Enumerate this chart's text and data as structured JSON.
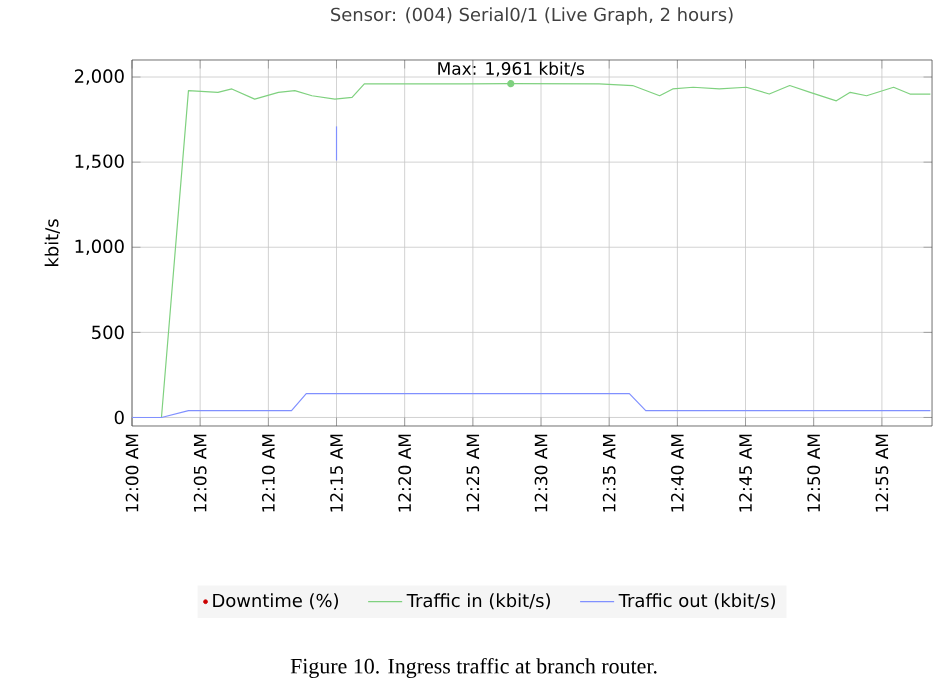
{
  "chart_data": {
    "type": "line",
    "title": "Sensor: (004) Serial0/1 (Live Graph, 2 hours)",
    "ylabel": "kbit/s",
    "xlim": [
      0,
      0.978
    ],
    "ylim": [
      -50,
      2100
    ],
    "xticks": [
      {
        "value": 0,
        "label": "12:00 AM"
      },
      {
        "value": 0.0833,
        "label": "12:05 AM"
      },
      {
        "value": 0.1667,
        "label": "12:10 AM"
      },
      {
        "value": 0.25,
        "label": "12:15 AM"
      },
      {
        "value": 0.3333,
        "label": "12:20 AM"
      },
      {
        "value": 0.4167,
        "label": "12:25 AM"
      },
      {
        "value": 0.5,
        "label": "12:30 AM"
      },
      {
        "value": 0.5833,
        "label": "12:35 AM"
      },
      {
        "value": 0.6667,
        "label": "12:40 AM"
      },
      {
        "value": 0.75,
        "label": "12:45 AM"
      },
      {
        "value": 0.8333,
        "label": "12:50 AM"
      },
      {
        "value": 0.9167,
        "label": "12:55 AM"
      }
    ],
    "yticks": [
      0,
      500,
      {
        "value": 1000,
        "label": "1,000"
      },
      {
        "value": 1500,
        "label": "1,500"
      },
      {
        "value": 2000,
        "label": "2,000"
      }
    ],
    "grid": true,
    "legend": "bottom",
    "marker": "none",
    "series": [
      {
        "name": "Downtime (%)",
        "type": "scatter",
        "color": "#cc0000"
      },
      {
        "name": "Traffic in (kbit/s)",
        "color": "#7fd17f",
        "x": [
          0,
          0.036,
          0.069,
          0.105,
          0.122,
          0.15,
          0.179,
          0.199,
          0.22,
          0.248,
          0.269,
          0.284,
          0.326,
          0.408,
          0.463,
          0.571,
          0.612,
          0.645,
          0.661,
          0.686,
          0.718,
          0.751,
          0.779,
          0.804,
          0.829,
          0.861,
          0.878,
          0.898,
          0.931,
          0.951,
          0.976
        ],
        "values": [
          0,
          0,
          1920,
          1910,
          1930,
          1870,
          1910,
          1920,
          1890,
          1870,
          1880,
          1960,
          1960,
          1960,
          1961,
          1960,
          1950,
          1890,
          1930,
          1940,
          1930,
          1940,
          1900,
          1950,
          1910,
          1860,
          1910,
          1890,
          1940,
          1900,
          1900
        ]
      },
      {
        "name": "Traffic out (kbit/s)",
        "color": "#8090ff",
        "x": [
          0,
          0.036,
          0.069,
          0.195,
          0.213,
          0.608,
          0.628,
          0.976
        ],
        "values": [
          0,
          0,
          40,
          40,
          140,
          140,
          40,
          40
        ]
      },
      {
        "color": "#8090ff",
        "x": [
          0.25,
          0.25
        ],
        "values": [
          1510,
          1710
        ]
      }
    ],
    "annotations": [
      {
        "text": "Max: 1,961 kbit/s",
        "x": 0.463,
        "y": 1961
      },
      "Figure 10. Ingress traffic at branch router."
    ]
  }
}
